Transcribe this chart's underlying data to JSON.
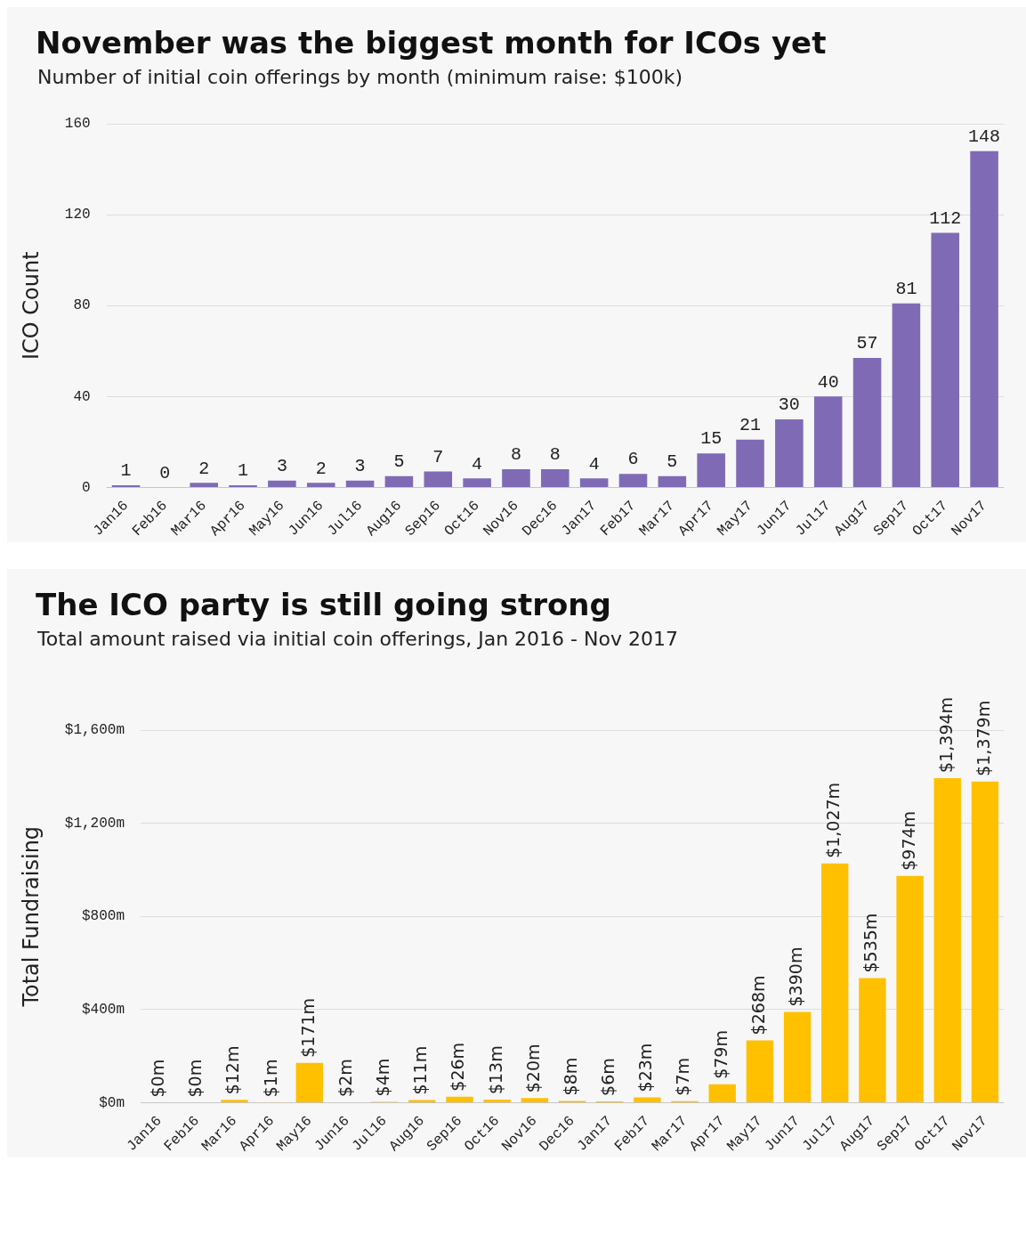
{
  "chart_data": [
    {
      "type": "bar",
      "title": "November was the biggest month for ICOs yet",
      "subtitle": "Number of initial coin offerings by month (minimum raise: $100k)",
      "ylabel": "ICO Count",
      "categories": [
        "Jan16",
        "Feb16",
        "Mar16",
        "Apr16",
        "May16",
        "Jun16",
        "Jul16",
        "Aug16",
        "Sep16",
        "Oct16",
        "Nov16",
        "Dec16",
        "Jan17",
        "Feb17",
        "Mar17",
        "Apr17",
        "May17",
        "Jun17",
        "Jul17",
        "Aug17",
        "Sep17",
        "Oct17",
        "Nov17"
      ],
      "values": [
        1,
        0,
        2,
        1,
        3,
        2,
        3,
        5,
        7,
        4,
        8,
        8,
        4,
        6,
        5,
        15,
        21,
        30,
        40,
        57,
        81,
        112,
        148
      ],
      "color": "#7f6bb5",
      "ylim": [
        0,
        160
      ],
      "yticks": [
        0,
        40,
        80,
        120,
        160
      ],
      "grid": "y",
      "legend": false,
      "data_labels": true
    },
    {
      "type": "bar",
      "title": "The ICO party is still going strong",
      "subtitle": "Total amount raised via initial coin offerings, Jan 2016 - Nov 2017",
      "ylabel": "Total Fundraising",
      "categories": [
        "Jan16",
        "Feb16",
        "Mar16",
        "Apr16",
        "May16",
        "Jun16",
        "Jul16",
        "Aug16",
        "Sep16",
        "Oct16",
        "Nov16",
        "Dec16",
        "Jan17",
        "Feb17",
        "Mar17",
        "Apr17",
        "May17",
        "Jun17",
        "Jul17",
        "Aug17",
        "Sep17",
        "Oct17",
        "Nov17"
      ],
      "values": [
        0,
        0,
        12,
        1,
        171,
        2,
        4,
        11,
        26,
        13,
        20,
        8,
        6,
        23,
        7,
        79,
        268,
        390,
        1027,
        535,
        974,
        1394,
        1379
      ],
      "color": "#ffc000",
      "value_labels": [
        "$0m",
        "$0m",
        "$12m",
        "$1m",
        "$171m",
        "$2m",
        "$4m",
        "$11m",
        "$26m",
        "$13m",
        "$20m",
        "$8m",
        "$6m",
        "$23m",
        "$7m",
        "$79m",
        "$268m",
        "$390m",
        "$1,027m",
        "$535m",
        "$974m",
        "$1,394m",
        "$1,379m"
      ],
      "ylim": [
        0,
        1600
      ],
      "yticks": [
        {
          "value": 0,
          "label": "$0m"
        },
        {
          "value": 400,
          "label": "$400m"
        },
        {
          "value": 800,
          "label": "$800m"
        },
        {
          "value": 1200,
          "label": "$1,200m"
        },
        {
          "value": 1600,
          "label": "$1,600m"
        }
      ],
      "grid": "y",
      "legend": false
    }
  ]
}
